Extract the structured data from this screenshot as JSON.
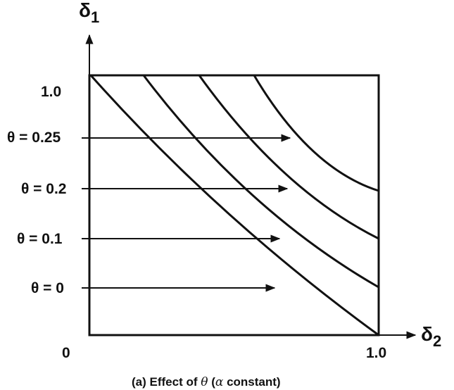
{
  "axes": {
    "y_symbol": "δ",
    "y_subscript": "1",
    "x_symbol": "δ",
    "x_subscript": "2",
    "origin_label": "0",
    "x_max_label": "1.0",
    "y_max_label": "1.0"
  },
  "theta_levels": [
    {
      "label": "θ = 0.25",
      "theta": 0.25
    },
    {
      "label": "θ = 0.2",
      "theta": 0.2
    },
    {
      "label": "θ = 0.1",
      "theta": 0.1
    },
    {
      "label": "θ = 0",
      "theta": 0
    }
  ],
  "caption": {
    "prefix": "(a) Effect of ",
    "theta_symbol": "θ",
    "middle": " (",
    "alpha_symbol": "α",
    "suffix": " constant)"
  }
}
